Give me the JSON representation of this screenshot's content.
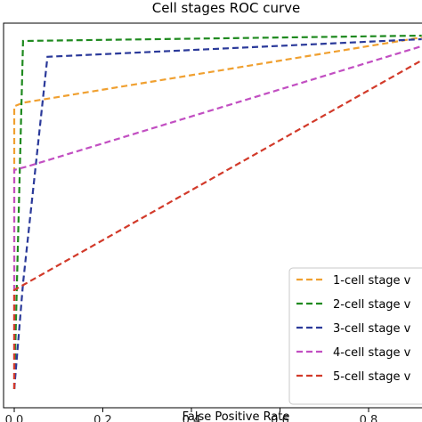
{
  "chart_data": {
    "type": "line",
    "title": "Cell stages ROC curve",
    "xlabel": "False Positive Rate",
    "ylabel": "",
    "xlim": [
      -0.02,
      0.9
    ],
    "ylim": [
      -0.02,
      1.02
    ],
    "xticks": [
      "0.0",
      "0.2",
      "0.4",
      "0.6",
      "0.8"
    ],
    "grid": false,
    "legend_position": "bottom-right",
    "series": [
      {
        "name": "1-cell stage v",
        "color": "#f0a030",
        "x": [
          0.0,
          0.0,
          0.02,
          0.92
        ],
        "y": [
          0.0,
          0.8,
          0.81,
          0.995
        ]
      },
      {
        "name": "2-cell stage v",
        "color": "#1f8a1f",
        "x": [
          0.0,
          0.02,
          0.92
        ],
        "y": [
          0.0,
          0.985,
          1.0
        ]
      },
      {
        "name": "3-cell stage v",
        "color": "#2b3a9a",
        "x": [
          0.0,
          0.02,
          0.075,
          0.92
        ],
        "y": [
          0.0,
          0.3,
          0.94,
          0.99
        ]
      },
      {
        "name": "4-cell stage v",
        "color": "#c24fc2",
        "x": [
          0.0,
          0.0,
          0.03,
          0.92
        ],
        "y": [
          0.0,
          0.62,
          0.63,
          0.97
        ]
      },
      {
        "name": "5-cell stage v",
        "color": "#d23a2a",
        "x": [
          0.0,
          0.0,
          0.92
        ],
        "y": [
          0.0,
          0.28,
          0.93
        ]
      }
    ]
  }
}
